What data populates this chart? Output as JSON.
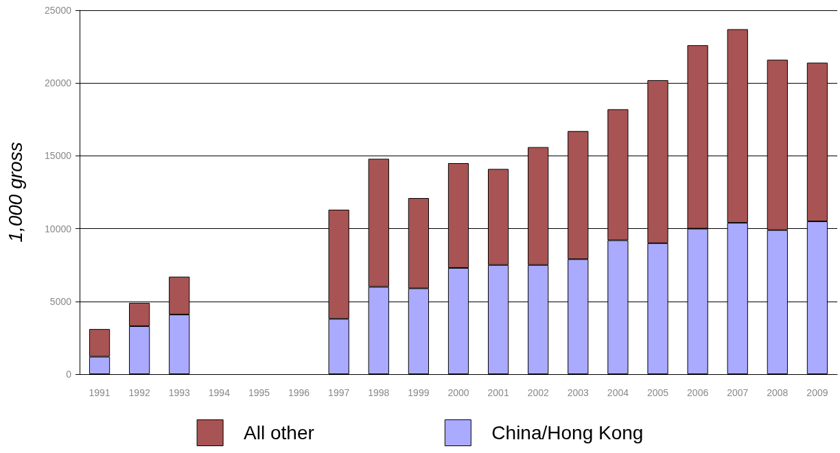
{
  "chart_data": {
    "type": "bar",
    "stacked": true,
    "ylabel": "1,000 gross",
    "categories": [
      "1991",
      "1992",
      "1993",
      "1994",
      "1995",
      "1996",
      "1997",
      "1998",
      "1999",
      "2000",
      "2001",
      "2002",
      "2003",
      "2004",
      "2005",
      "2006",
      "2007",
      "2008",
      "2009"
    ],
    "series": [
      {
        "name": "China/Hong Kong",
        "color": "#aaaaff",
        "values": [
          1200,
          3300,
          4100,
          null,
          null,
          null,
          3800,
          6000,
          5900,
          7300,
          7500,
          7500,
          7900,
          9200,
          9000,
          10000,
          10400,
          9900,
          10500
        ]
      },
      {
        "name": "All other",
        "color": "#a85454",
        "values": [
          1900,
          1600,
          2600,
          null,
          null,
          null,
          7500,
          8800,
          6200,
          7200,
          6600,
          8100,
          8800,
          9000,
          11200,
          12600,
          13300,
          11700,
          10900
        ]
      }
    ],
    "ylim": [
      0,
      25000
    ],
    "yticks": [
      0,
      5000,
      10000,
      15000,
      20000,
      25000
    ],
    "grid": "y",
    "legend": "bottom"
  }
}
